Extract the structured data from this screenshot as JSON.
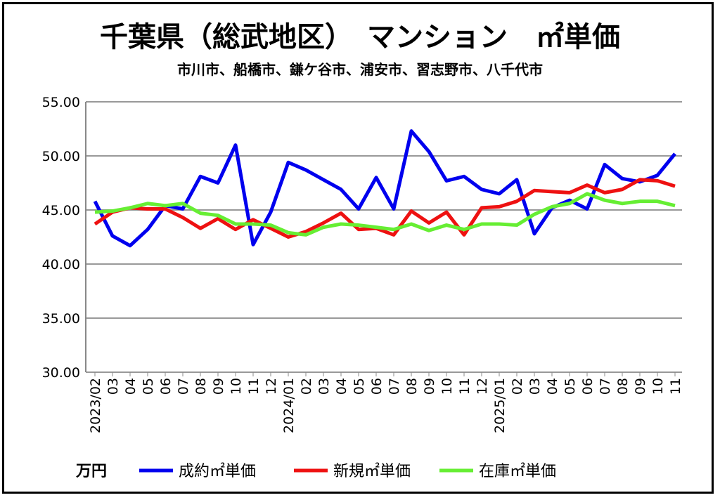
{
  "chart_data": {
    "type": "line",
    "title": "千葉県（総武地区）　マンション　㎡単価",
    "subtitle": "市川市、船橋市、鎌ケ谷市、浦安市、習志野市、八千代市",
    "unit_label": "万円",
    "ylim": [
      30,
      55
    ],
    "yticks": [
      "30.00",
      "35.00",
      "40.00",
      "45.00",
      "50.00",
      "55.00"
    ],
    "grid": true,
    "legend_position": "bottom",
    "x": [
      "2023/02",
      "03",
      "04",
      "05",
      "06",
      "07",
      "08",
      "09",
      "10",
      "11",
      "12",
      "2024/01",
      "02",
      "03",
      "04",
      "05",
      "06",
      "07",
      "08",
      "09",
      "10",
      "11",
      "12",
      "2025/01",
      "02",
      "03",
      "04",
      "05",
      "06",
      "07",
      "08",
      "09",
      "10",
      "11"
    ],
    "series": [
      {
        "name": "成約㎡単価",
        "color": "#0000ee",
        "values": [
          45.8,
          42.6,
          41.7,
          43.2,
          45.4,
          45.1,
          48.1,
          47.5,
          51.0,
          41.8,
          44.8,
          49.4,
          48.7,
          47.8,
          46.9,
          45.1,
          48.0,
          45.1,
          52.3,
          50.4,
          47.7,
          48.1,
          46.9,
          46.5,
          47.8,
          42.8,
          45.2,
          45.9,
          45.1,
          49.2,
          47.9,
          47.6,
          48.2,
          50.2
        ]
      },
      {
        "name": "新規㎡単価",
        "color": "#ee1111",
        "values": [
          43.7,
          44.8,
          45.2,
          45.1,
          45.1,
          44.3,
          43.3,
          44.2,
          43.2,
          44.1,
          43.3,
          42.5,
          43.0,
          43.8,
          44.7,
          43.2,
          43.3,
          42.7,
          44.9,
          43.8,
          44.8,
          42.7,
          45.2,
          45.3,
          45.8,
          46.8,
          46.7,
          46.6,
          47.3,
          46.6,
          46.9,
          47.8,
          47.7,
          47.2
        ]
      },
      {
        "name": "在庫㎡単価",
        "color": "#66ee33",
        "values": [
          44.8,
          44.9,
          45.2,
          45.6,
          45.4,
          45.6,
          44.7,
          44.5,
          43.7,
          43.7,
          43.6,
          42.9,
          42.7,
          43.4,
          43.7,
          43.6,
          43.4,
          43.2,
          43.7,
          43.1,
          43.6,
          43.2,
          43.7,
          43.7,
          43.6,
          44.6,
          45.3,
          45.6,
          46.5,
          45.9,
          45.6,
          45.8,
          45.8,
          45.4
        ]
      }
    ]
  }
}
